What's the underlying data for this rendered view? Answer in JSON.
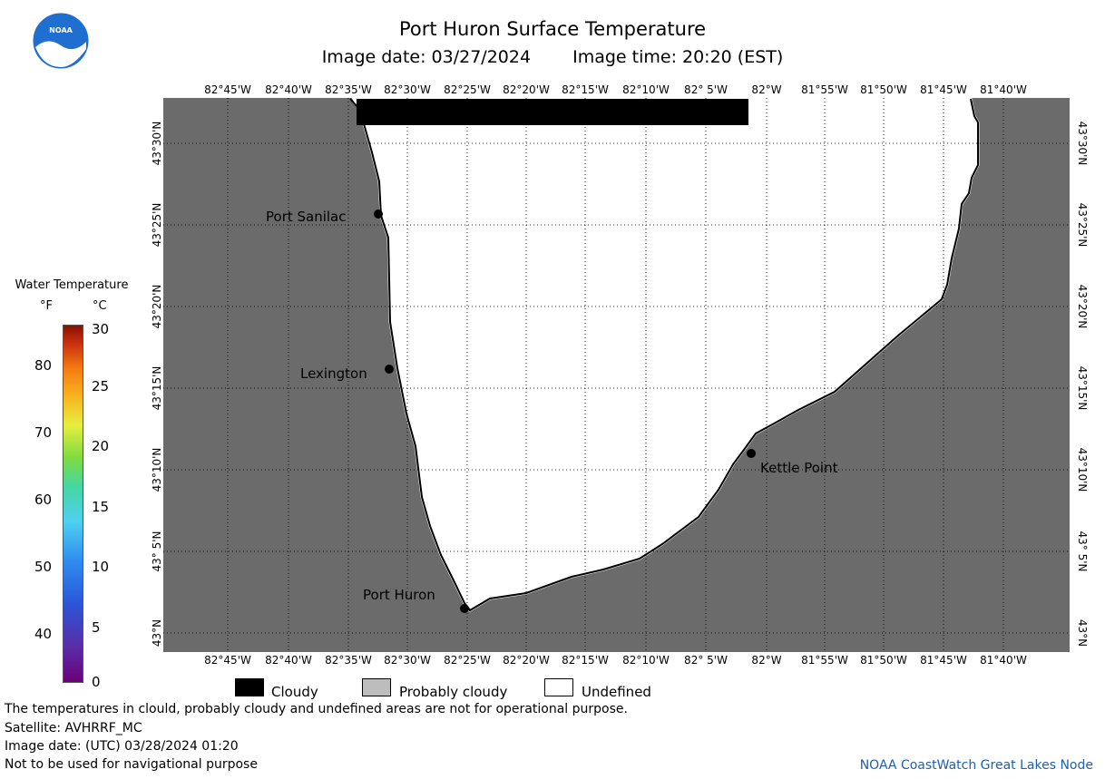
{
  "header": {
    "title": "Port Huron Surface Temperature",
    "image_date": "Image date: 03/27/2024",
    "image_time": "Image time: 20:20 (EST)"
  },
  "logo": {
    "text": "NOAA",
    "icon": "noaa-logo-icon"
  },
  "map": {
    "lon_labels": [
      "82°45'W",
      "82°40'W",
      "82°35'W",
      "82°30'W",
      "82°25'W",
      "82°20'W",
      "82°15'W",
      "82°10'W",
      "82° 5'W",
      "82°W",
      "81°55'W",
      "81°50'W",
      "81°45'W",
      "81°40'W"
    ],
    "lat_labels": [
      "43°30'N",
      "43°25'N",
      "43°20'N",
      "43°15'N",
      "43°10'N",
      "43° 5'N",
      "43°N"
    ],
    "cities": [
      {
        "name": "Port Sanilac"
      },
      {
        "name": "Lexington"
      },
      {
        "name": "Kettle Point"
      },
      {
        "name": "Port Huron"
      }
    ],
    "colors": {
      "land": "#6b6b6b",
      "cloud": "#000000",
      "undefined": "#ffffff",
      "grid": "#000000"
    }
  },
  "legend": {
    "title": "Water Temperature",
    "unit_f": "°F",
    "unit_c": "°C",
    "f_ticks": [
      "80",
      "70",
      "60",
      "50",
      "40"
    ],
    "c_ticks": [
      "30",
      "25",
      "20",
      "15",
      "10",
      "5",
      "0"
    ]
  },
  "key": {
    "cloudy": "Cloudy",
    "probably_cloudy": "Probably cloudy",
    "undefined": "Undefined"
  },
  "footer": {
    "disclaimer": "The temperatures in clould, probably cloudy and undefined areas are not for operational purpose.",
    "satellite": "Satellite: AVHRRF_MC",
    "utc_date": "Image date: (UTC) 03/28/2024  01:20",
    "nav_warning": "Not to be used for navigational purpose",
    "credit": "NOAA CoastWatch Great Lakes Node"
  }
}
